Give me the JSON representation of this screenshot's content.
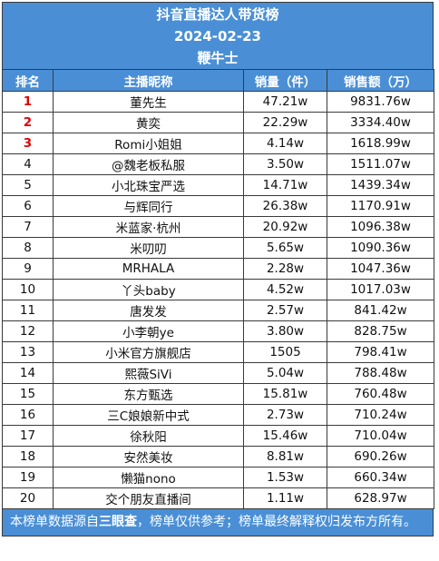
{
  "header": {
    "title": "抖音直播达人带货榜",
    "date": "2024-02-23",
    "brand": "鞭牛士"
  },
  "columns": {
    "rank": "排名",
    "name": "主播昵称",
    "sales": "销量（件）",
    "revenue": "销售额（万）"
  },
  "rows": [
    {
      "rank": "1",
      "name": "董先生",
      "sales": "47.21w",
      "revenue": "9831.76w"
    },
    {
      "rank": "2",
      "name": "黄奕",
      "sales": "22.29w",
      "revenue": "3334.40w"
    },
    {
      "rank": "3",
      "name": "Romi小姐姐",
      "sales": "4.14w",
      "revenue": "1618.99w"
    },
    {
      "rank": "4",
      "name": "@魏老板私服",
      "sales": "3.50w",
      "revenue": "1511.07w"
    },
    {
      "rank": "5",
      "name": "小北珠宝严选",
      "sales": "14.71w",
      "revenue": "1439.34w"
    },
    {
      "rank": "6",
      "name": "与辉同行",
      "sales": "26.38w",
      "revenue": "1170.91w"
    },
    {
      "rank": "7",
      "name": "米蓝家·杭州",
      "sales": "20.92w",
      "revenue": "1096.38w"
    },
    {
      "rank": "8",
      "name": "米叨叨",
      "sales": "5.65w",
      "revenue": "1090.36w"
    },
    {
      "rank": "9",
      "name": "MRHALA",
      "sales": "2.28w",
      "revenue": "1047.36w"
    },
    {
      "rank": "10",
      "name": "丫头baby",
      "sales": "4.52w",
      "revenue": "1017.03w"
    },
    {
      "rank": "11",
      "name": "唐发发",
      "sales": "2.57w",
      "revenue": "841.42w"
    },
    {
      "rank": "12",
      "name": "小李朝ye",
      "sales": "3.80w",
      "revenue": "828.75w"
    },
    {
      "rank": "13",
      "name": "小米官方旗舰店",
      "sales": "1505",
      "revenue": "798.41w"
    },
    {
      "rank": "14",
      "name": "熙薇SiVi",
      "sales": "5.04w",
      "revenue": "788.48w"
    },
    {
      "rank": "15",
      "name": "东方甄选",
      "sales": "15.81w",
      "revenue": "760.48w"
    },
    {
      "rank": "16",
      "name": "三C娘娘新中式",
      "sales": "2.73w",
      "revenue": "710.24w"
    },
    {
      "rank": "17",
      "name": "徐秋阳",
      "sales": "15.46w",
      "revenue": "710.04w"
    },
    {
      "rank": "18",
      "name": "安然美妆",
      "sales": "8.81w",
      "revenue": "690.26w"
    },
    {
      "rank": "19",
      "name": "懒猫nono",
      "sales": "1.53w",
      "revenue": "660.34w"
    },
    {
      "rank": "20",
      "name": "交个朋友直播间",
      "sales": "1.11w",
      "revenue": "628.97w"
    }
  ],
  "footer": {
    "prefix": "本榜单数据源自",
    "source": "三眼查",
    "suffix": "，榜单仅供参考；榜单最终解释权归发布方所有。"
  },
  "colors": {
    "header_bg": "#4a8fd6",
    "top_rank": "#e00000"
  }
}
